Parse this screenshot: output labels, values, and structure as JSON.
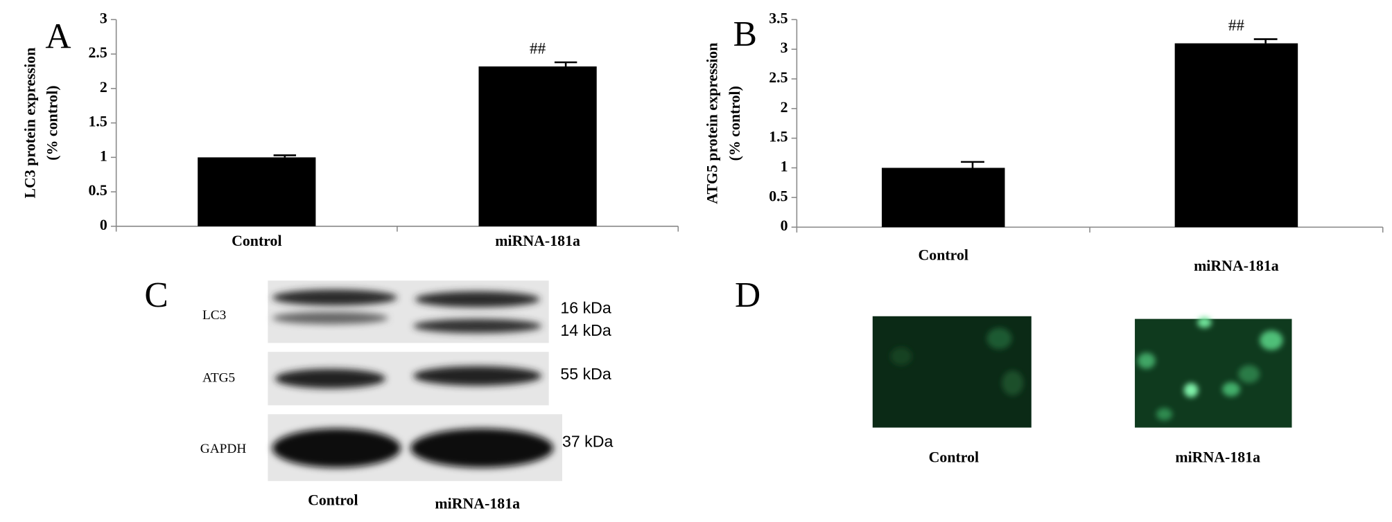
{
  "chart_data": [
    {
      "type": "bar",
      "panel": "A",
      "ylabel": [
        "LC3 protein expression",
        "(% control)"
      ],
      "categories": [
        "Control",
        "miRNA-181a"
      ],
      "values": [
        1,
        2.32
      ],
      "errors": [
        0.03,
        0.06
      ],
      "annotations": [
        null,
        "##"
      ],
      "color": "#000000",
      "ylim": [
        0,
        3
      ],
      "yticks": [
        0,
        0.5,
        1,
        1.5,
        2,
        2.5,
        3
      ]
    },
    {
      "type": "bar",
      "panel": "B",
      "ylabel": [
        "ATG5 protein expression",
        "(% control)"
      ],
      "categories": [
        "Control",
        "miRNA-181a"
      ],
      "values": [
        1,
        3.1
      ],
      "errors": [
        0.1,
        0.07
      ],
      "annotations": [
        null,
        "##"
      ],
      "color": "#000000",
      "ylim": [
        0,
        3.5
      ],
      "yticks": [
        0,
        0.5,
        1,
        1.5,
        2,
        2.5,
        3,
        3.5
      ]
    }
  ],
  "blot": {
    "panel": "C",
    "rows": [
      "LC3",
      "ATG5",
      "GAPDH"
    ],
    "sizes": [
      "16 kDa",
      "14 kDa",
      "55 kDa",
      "37 kDa"
    ],
    "lanes": [
      "Control",
      "miRNA-181a"
    ]
  },
  "fluorescence": {
    "panel": "D",
    "lanes": [
      "Control",
      "miRNA-181a"
    ]
  }
}
